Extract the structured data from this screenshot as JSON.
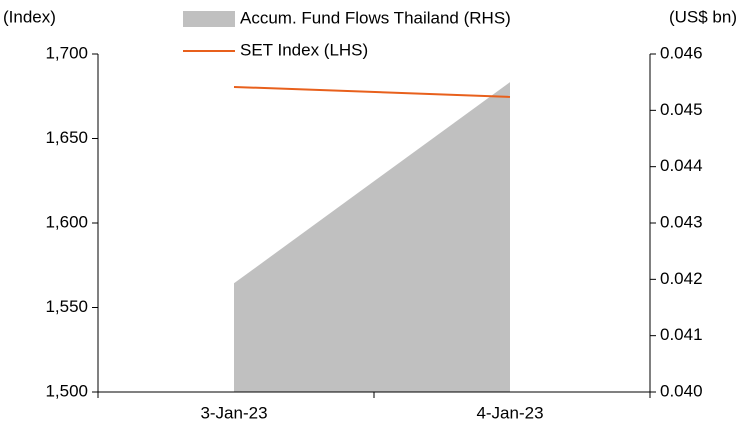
{
  "chart_data": {
    "type": "area-line",
    "y_label": "(Index)",
    "y2_label": "(US$ bn)",
    "categories": [
      "3-Jan-23",
      "4-Jan-23"
    ],
    "series": [
      {
        "name": "Accum. Fund Flows Thailand (RHS)",
        "type": "area",
        "axis": "y2",
        "color": "#c0c0c0",
        "values": [
          0.04193,
          0.0455
        ]
      },
      {
        "name": "SET Index (LHS)",
        "type": "line",
        "axis": "y",
        "color": "#e8601c",
        "values": [
          1680.5,
          1674.6
        ]
      }
    ],
    "ylim": [
      1500,
      1700
    ],
    "yticks": [
      {
        "value": 1500,
        "label": "1,500"
      },
      {
        "value": 1550,
        "label": "1,550"
      },
      {
        "value": 1600,
        "label": "1,600"
      },
      {
        "value": 1650,
        "label": "1,650"
      },
      {
        "value": 1700,
        "label": "1,700"
      }
    ],
    "y2lim": [
      0.04,
      0.046
    ],
    "y2ticks": [
      {
        "value": 0.04,
        "label": "0.040"
      },
      0.041,
      0.042,
      0.043,
      0.044,
      0.045,
      0.046
    ],
    "legend": "top"
  }
}
